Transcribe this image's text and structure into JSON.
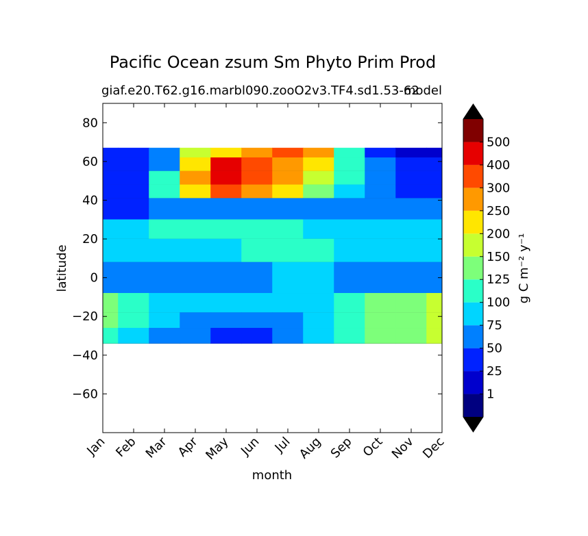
{
  "chart_data": {
    "type": "heatmap",
    "title": "Pacific Ocean zsum Sm Phyto Prim Prod",
    "subtitle": "giaf.e20.T62.g16.marbl090.zooO2v3.TF4.sd1.53-62",
    "subtitle_right": "model",
    "xlabel": "month",
    "ylabel": "latitude",
    "x_categories": [
      "Jan",
      "Feb",
      "Mar",
      "Apr",
      "May",
      "Jun",
      "Jul",
      "Aug",
      "Sep",
      "Oct",
      "Nov",
      "Dec"
    ],
    "ylim": [
      -80,
      90
    ],
    "y_ticks": [
      80,
      60,
      40,
      20,
      0,
      -20,
      -40,
      -60
    ],
    "y_tick_labels": [
      "80",
      "60",
      "40",
      "20",
      "0",
      "−20",
      "−40",
      "−60"
    ],
    "data_lat_range": [
      -34,
      67
    ],
    "colorbar": {
      "label": "g C m⁻² y⁻¹",
      "levels": [
        0,
        1,
        25,
        50,
        75,
        100,
        125,
        150,
        200,
        250,
        300,
        400,
        500,
        600
      ],
      "tick_labels": [
        "1",
        "25",
        "50",
        "75",
        "100",
        "125",
        "150",
        "200",
        "250",
        "300",
        "400",
        "500"
      ],
      "colors": [
        "#000080",
        "#0000cd",
        "#0022ff",
        "#0080ff",
        "#00d5ff",
        "#2affc8",
        "#7dff7a",
        "#c7ff30",
        "#ffe600",
        "#ff9900",
        "#ff4a00",
        "#e60000",
        "#800000"
      ],
      "extend_under": "#000000",
      "extend_over": "#000000"
    },
    "contour_bands": [
      {
        "lat_from": 62,
        "lat_to": 67,
        "values_by_month": [
          25,
          25,
          50,
          150,
          200,
          250,
          300,
          250,
          100,
          25,
          1,
          1
        ]
      },
      {
        "lat_from": 55,
        "lat_to": 62,
        "values_by_month": [
          25,
          25,
          50,
          200,
          400,
          300,
          250,
          200,
          100,
          50,
          25,
          25
        ]
      },
      {
        "lat_from": 48,
        "lat_to": 55,
        "values_by_month": [
          25,
          25,
          100,
          250,
          400,
          300,
          250,
          150,
          100,
          50,
          25,
          25
        ]
      },
      {
        "lat_from": 41,
        "lat_to": 48,
        "values_by_month": [
          25,
          25,
          100,
          200,
          300,
          250,
          200,
          125,
          75,
          50,
          25,
          25
        ]
      },
      {
        "lat_from": 30,
        "lat_to": 41,
        "values_by_month": [
          25,
          25,
          50,
          50,
          50,
          50,
          50,
          50,
          50,
          50,
          50,
          50
        ]
      },
      {
        "lat_from": 20,
        "lat_to": 30,
        "values_by_month": [
          75,
          75,
          100,
          100,
          100,
          100,
          100,
          75,
          75,
          75,
          75,
          75
        ]
      },
      {
        "lat_from": 8,
        "lat_to": 20,
        "values_by_month": [
          75,
          75,
          75,
          75,
          75,
          100,
          100,
          100,
          75,
          75,
          75,
          75
        ]
      },
      {
        "lat_from": -8,
        "lat_to": 8,
        "values_by_month": [
          50,
          50,
          50,
          50,
          50,
          50,
          75,
          75,
          50,
          50,
          50,
          50
        ]
      },
      {
        "lat_from": -18,
        "lat_to": -8,
        "values_by_month": [
          125,
          100,
          75,
          75,
          75,
          75,
          75,
          75,
          100,
          125,
          125,
          150
        ]
      },
      {
        "lat_from": -26,
        "lat_to": -18,
        "values_by_month": [
          125,
          100,
          75,
          50,
          50,
          50,
          50,
          75,
          100,
          125,
          125,
          150
        ]
      },
      {
        "lat_from": -34,
        "lat_to": -26,
        "values_by_month": [
          100,
          75,
          50,
          50,
          25,
          25,
          50,
          75,
          100,
          125,
          125,
          150
        ]
      }
    ]
  }
}
